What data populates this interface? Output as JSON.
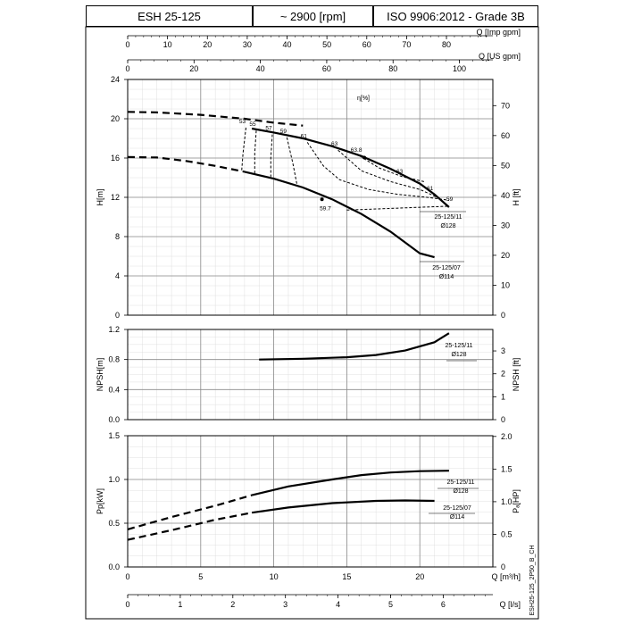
{
  "header": {
    "model": "ESH 25-125",
    "speed": "~ 2900 [rpm]",
    "standard": "ISO 9906:2012 - Grade 3B"
  },
  "side_code": "ESH25-125_2P50_B_CH",
  "top_axes": {
    "imp_gpm": {
      "label": "Q [Imp gpm]",
      "ticks": [
        "0",
        "10",
        "20",
        "30",
        "40",
        "50",
        "60",
        "70",
        "80"
      ],
      "values": [
        0,
        10,
        20,
        30,
        40,
        50,
        60,
        70,
        80
      ]
    },
    "us_gpm": {
      "label": "Q [US gpm]",
      "ticks": [
        "0",
        "20",
        "40",
        "60",
        "80",
        "100"
      ],
      "values": [
        0,
        20,
        40,
        60,
        80,
        100
      ]
    }
  },
  "bottom_axes": {
    "m3h": {
      "label": "Q [m³/h]",
      "ticks": [
        "0",
        "5",
        "10",
        "15",
        "20"
      ],
      "values": [
        0,
        5,
        10,
        15,
        20
      ]
    },
    "ls": {
      "label": "Q [l/s]",
      "ticks": [
        "0",
        "1",
        "2",
        "3",
        "4",
        "5",
        "6"
      ],
      "values": [
        0,
        1,
        2,
        3,
        4,
        5,
        6
      ]
    }
  },
  "eff_label": "η[%]",
  "chart_data": [
    {
      "type": "line",
      "panel": "head",
      "xlim": [
        0,
        25
      ],
      "ylim": [
        0,
        24
      ],
      "ylabel": "H[m]",
      "y2label": "H [ft]",
      "yticks": [
        "0",
        "4",
        "8",
        "12",
        "16",
        "20",
        "24"
      ],
      "y2ticks": [
        "0",
        "10",
        "20",
        "30",
        "40",
        "50",
        "60",
        "70"
      ],
      "series": [
        {
          "name": "25-125/11 Ø128",
          "dashed": [
            [
              0,
              20.7
            ],
            [
              2,
              20.65
            ],
            [
              5,
              20.4
            ],
            [
              8,
              20.0
            ],
            [
              10,
              19.6
            ],
            [
              12,
              19.3
            ]
          ],
          "solid": [
            [
              8.5,
              19.0
            ],
            [
              10,
              18.6
            ],
            [
              12,
              18.0
            ],
            [
              14,
              17.2
            ],
            [
              16,
              16.2
            ],
            [
              18,
              14.9
            ],
            [
              20,
              13.4
            ],
            [
              21,
              12.3
            ],
            [
              22,
              11.0
            ]
          ]
        },
        {
          "name": "25-125/07 Ø114",
          "dashed": [
            [
              0,
              16.1
            ],
            [
              2,
              16.05
            ],
            [
              4,
              15.7
            ],
            [
              6,
              15.2
            ],
            [
              8,
              14.6
            ]
          ],
          "solid": [
            [
              8,
              14.6
            ],
            [
              10,
              13.9
            ],
            [
              12,
              13.0
            ],
            [
              14,
              11.8
            ],
            [
              16,
              10.3
            ],
            [
              18,
              8.5
            ],
            [
              20,
              6.3
            ],
            [
              21,
              5.9
            ]
          ]
        }
      ],
      "efficiency_iso_lines": [
        {
          "label": "53",
          "points": [
            [
              8.1,
              19.1
            ],
            [
              7.9,
              16.5
            ],
            [
              7.8,
              14.6
            ]
          ]
        },
        {
          "label": "55",
          "points": [
            [
              8.8,
              18.8
            ],
            [
              8.7,
              16.5
            ],
            [
              8.7,
              14.4
            ]
          ]
        },
        {
          "label": "57",
          "points": [
            [
              9.9,
              18.4
            ],
            [
              9.8,
              16.0
            ],
            [
              9.8,
              14.1
            ]
          ]
        },
        {
          "label": "59",
          "points": [
            [
              10.9,
              18.1
            ],
            [
              11.3,
              15.5
            ],
            [
              11.6,
              13.2
            ]
          ]
        },
        {
          "label": "61",
          "points": [
            [
              12.3,
              17.6
            ],
            [
              13.4,
              15.2
            ],
            [
              14.5,
              13.8
            ],
            [
              16.5,
              12.8
            ],
            [
              18.5,
              12.3
            ],
            [
              20.5,
              12.0
            ],
            [
              22,
              11.7
            ]
          ]
        },
        {
          "label": "63",
          "points": [
            [
              14.4,
              16.8
            ],
            [
              16.0,
              14.7
            ],
            [
              18.0,
              13.6
            ],
            [
              20.0,
              12.8
            ],
            [
              21.2,
              12.0
            ]
          ]
        },
        {
          "label": "63.8",
          "points": [
            [
              15.9,
              16.2
            ],
            [
              17.2,
              15.0
            ],
            [
              18.8,
              14.1
            ],
            [
              20.3,
              13.6
            ]
          ]
        },
        {
          "label": "59.7",
          "points": [
            [
              15.0,
              10.7
            ],
            [
              22.0,
              11.1
            ]
          ]
        }
      ],
      "labels": [
        {
          "text": "25-125/11",
          "pos": "right"
        },
        {
          "text": "Ø128",
          "pos": "right"
        },
        {
          "text": "25-125/07",
          "pos": "right"
        },
        {
          "text": "Ø114",
          "pos": "right"
        },
        {
          "text": "59",
          "pos": "right"
        }
      ]
    },
    {
      "type": "line",
      "panel": "npsh",
      "xlim": [
        0,
        25
      ],
      "ylim": [
        0,
        1.2
      ],
      "ylabel": "NPSH[m]",
      "y2label": "NPSH [ft]",
      "yticks": [
        "0.0",
        "0.4",
        "0.8",
        "1.2"
      ],
      "y2ticks": [
        "0",
        "1",
        "2",
        "3"
      ],
      "series": [
        {
          "name": "25-125/11 Ø128",
          "solid": [
            [
              9,
              0.8
            ],
            [
              12,
              0.81
            ],
            [
              15,
              0.83
            ],
            [
              17,
              0.86
            ],
            [
              19,
              0.92
            ],
            [
              21,
              1.03
            ],
            [
              22,
              1.15
            ]
          ]
        }
      ]
    },
    {
      "type": "line",
      "panel": "power",
      "xlim": [
        0,
        25
      ],
      "ylim": [
        0,
        1.5
      ],
      "ylabel": "Pp[kW]",
      "y2label": "Pₐ[HP]",
      "yticks": [
        "0.0",
        "0.5",
        "1.0",
        "1.5"
      ],
      "y2ticks": [
        "0",
        "0.5",
        "1.0",
        "1.5",
        "2.0"
      ],
      "series": [
        {
          "name": "25-125/11 Ø128",
          "dashed": [
            [
              0,
              0.43
            ],
            [
              3,
              0.57
            ],
            [
              6,
              0.7
            ],
            [
              8.5,
              0.82
            ]
          ],
          "solid": [
            [
              8.5,
              0.82
            ],
            [
              11,
              0.92
            ],
            [
              14,
              1.0
            ],
            [
              16,
              1.05
            ],
            [
              18,
              1.08
            ],
            [
              20,
              1.095
            ],
            [
              22,
              1.1
            ]
          ]
        },
        {
          "name": "25-125/07 Ø114",
          "dashed": [
            [
              0,
              0.31
            ],
            [
              3,
              0.42
            ],
            [
              6,
              0.54
            ],
            [
              8.5,
              0.62
            ]
          ],
          "solid": [
            [
              8.5,
              0.62
            ],
            [
              11,
              0.68
            ],
            [
              14,
              0.73
            ],
            [
              17,
              0.755
            ],
            [
              19,
              0.76
            ],
            [
              21,
              0.755
            ]
          ]
        }
      ]
    }
  ]
}
